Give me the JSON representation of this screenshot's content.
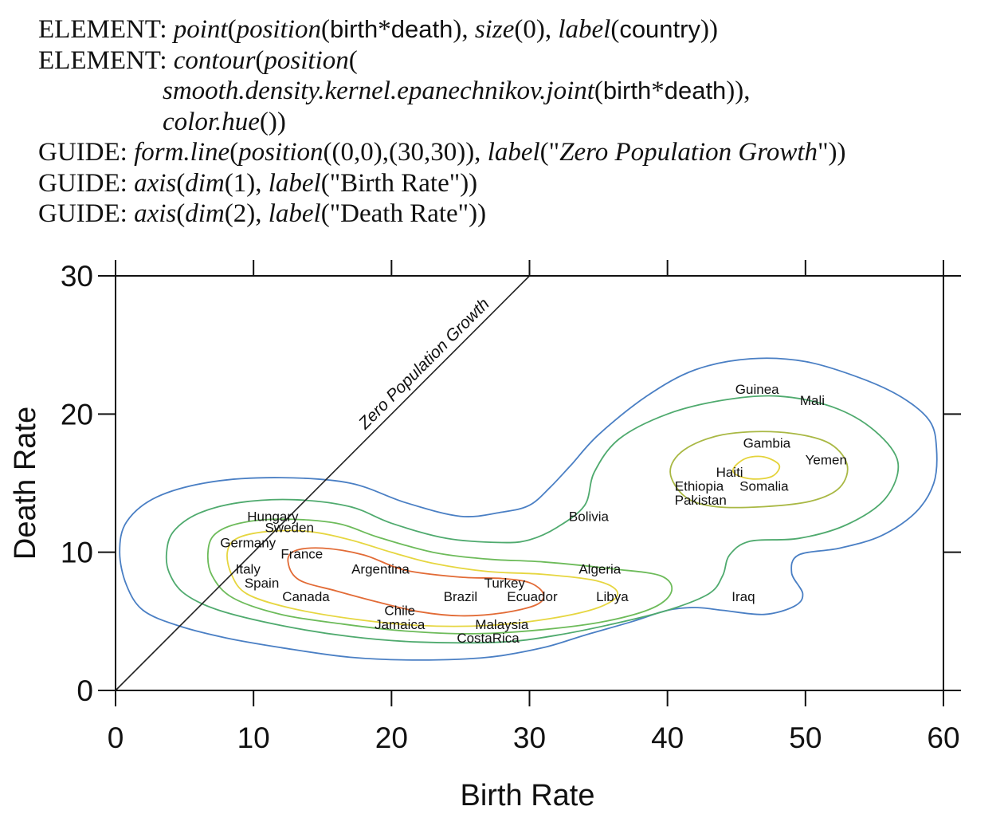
{
  "spec": {
    "lines": [
      {
        "indent": false,
        "segments": [
          {
            "t": "ELEMENT: ",
            "s": "n"
          },
          {
            "t": "point",
            "s": "i"
          },
          {
            "t": "(",
            "s": "n"
          },
          {
            "t": "position",
            "s": "i"
          },
          {
            "t": "(",
            "s": "n"
          },
          {
            "t": "birth",
            "s": "d"
          },
          {
            "t": "*",
            "s": "n"
          },
          {
            "t": "death",
            "s": "d"
          },
          {
            "t": "), ",
            "s": "n"
          },
          {
            "t": "size",
            "s": "i"
          },
          {
            "t": "(0), ",
            "s": "n"
          },
          {
            "t": "label",
            "s": "i"
          },
          {
            "t": "(",
            "s": "n"
          },
          {
            "t": "country",
            "s": "d"
          },
          {
            "t": "))",
            "s": "n"
          }
        ]
      },
      {
        "indent": false,
        "segments": [
          {
            "t": "ELEMENT: ",
            "s": "n"
          },
          {
            "t": "contour",
            "s": "i"
          },
          {
            "t": "(",
            "s": "n"
          },
          {
            "t": "position",
            "s": "i"
          },
          {
            "t": "(",
            "s": "n"
          }
        ]
      },
      {
        "indent": true,
        "segments": [
          {
            "t": "smooth.density.kernel.epanechnikov.joint",
            "s": "i"
          },
          {
            "t": "(",
            "s": "n"
          },
          {
            "t": "birth",
            "s": "d"
          },
          {
            "t": "*",
            "s": "n"
          },
          {
            "t": "death",
            "s": "d"
          },
          {
            "t": ")),",
            "s": "n"
          }
        ]
      },
      {
        "indent": true,
        "segments": [
          {
            "t": "color.hue",
            "s": "i"
          },
          {
            "t": "())",
            "s": "n"
          }
        ]
      },
      {
        "indent": false,
        "segments": [
          {
            "t": "GUIDE: ",
            "s": "n"
          },
          {
            "t": "form.line",
            "s": "i"
          },
          {
            "t": "(",
            "s": "n"
          },
          {
            "t": "position",
            "s": "i"
          },
          {
            "t": "((0,0),(30,30)), ",
            "s": "n"
          },
          {
            "t": "label",
            "s": "i"
          },
          {
            "t": "(\"",
            "s": "n"
          },
          {
            "t": "Zero Population Growth",
            "s": "i"
          },
          {
            "t": "\"))",
            "s": "n"
          }
        ]
      },
      {
        "indent": false,
        "segments": [
          {
            "t": "GUIDE: ",
            "s": "n"
          },
          {
            "t": "axis",
            "s": "i"
          },
          {
            "t": "(",
            "s": "n"
          },
          {
            "t": "dim",
            "s": "i"
          },
          {
            "t": "(1), ",
            "s": "n"
          },
          {
            "t": "label",
            "s": "i"
          },
          {
            "t": "(\"Birth Rate\"))",
            "s": "n"
          }
        ]
      },
      {
        "indent": false,
        "segments": [
          {
            "t": "GUIDE: ",
            "s": "n"
          },
          {
            "t": "axis",
            "s": "i"
          },
          {
            "t": "(",
            "s": "n"
          },
          {
            "t": "dim",
            "s": "i"
          },
          {
            "t": "(2), ",
            "s": "n"
          },
          {
            "t": "label",
            "s": "i"
          },
          {
            "t": "(\"Death Rate\"))",
            "s": "n"
          }
        ]
      }
    ]
  },
  "chart_data": {
    "type": "scatter",
    "xlabel": "Birth Rate",
    "ylabel": "Death Rate",
    "xlim": [
      0,
      60
    ],
    "ylim": [
      0,
      30
    ],
    "xticks": [
      0,
      10,
      20,
      30,
      40,
      50,
      60
    ],
    "yticks": [
      0,
      10,
      20,
      30
    ],
    "grid": false,
    "reference_line": {
      "from": [
        0,
        0
      ],
      "to": [
        30,
        30
      ],
      "label": "Zero Population Growth",
      "color": "#222222"
    },
    "points": [
      {
        "label": "Guinea",
        "x": 46.5,
        "y": 21.8
      },
      {
        "label": "Mali",
        "x": 50.5,
        "y": 21.0
      },
      {
        "label": "Gambia",
        "x": 47.2,
        "y": 17.9
      },
      {
        "label": "Yemen",
        "x": 51.5,
        "y": 16.7
      },
      {
        "label": "Haiti",
        "x": 44.5,
        "y": 15.8
      },
      {
        "label": "Ethiopia",
        "x": 42.3,
        "y": 14.8
      },
      {
        "label": "Somalia",
        "x": 47.0,
        "y": 14.8
      },
      {
        "label": "Pakistan",
        "x": 42.4,
        "y": 13.8
      },
      {
        "label": "Bolivia",
        "x": 34.3,
        "y": 12.6
      },
      {
        "label": "Hungary",
        "x": 11.4,
        "y": 12.6
      },
      {
        "label": "Sweden",
        "x": 12.6,
        "y": 11.8
      },
      {
        "label": "Germany",
        "x": 9.6,
        "y": 10.7
      },
      {
        "label": "France",
        "x": 13.5,
        "y": 9.9
      },
      {
        "label": "Argentina",
        "x": 19.2,
        "y": 8.8
      },
      {
        "label": "Algeria",
        "x": 35.1,
        "y": 8.8
      },
      {
        "label": "Italy",
        "x": 9.6,
        "y": 8.8
      },
      {
        "label": "Spain",
        "x": 10.6,
        "y": 7.8
      },
      {
        "label": "Turkey",
        "x": 28.2,
        "y": 7.8
      },
      {
        "label": "Canada",
        "x": 13.8,
        "y": 6.8
      },
      {
        "label": "Brazil",
        "x": 25.0,
        "y": 6.8
      },
      {
        "label": "Ecuador",
        "x": 30.2,
        "y": 6.8
      },
      {
        "label": "Libya",
        "x": 36.0,
        "y": 6.8
      },
      {
        "label": "Iraq",
        "x": 45.5,
        "y": 6.8
      },
      {
        "label": "Chile",
        "x": 20.6,
        "y": 5.8
      },
      {
        "label": "Jamaica",
        "x": 20.6,
        "y": 4.8
      },
      {
        "label": "Malaysia",
        "x": 28.0,
        "y": 4.8
      },
      {
        "label": "CostaRica",
        "x": 27.0,
        "y": 3.8
      }
    ],
    "contours": [
      {
        "color": "#4a7fc4",
        "points": [
          [
            0.3,
            10
          ],
          [
            0.8,
            12.2
          ],
          [
            3,
            14
          ],
          [
            7,
            15.1
          ],
          [
            12,
            15.4
          ],
          [
            17,
            15.0
          ],
          [
            21,
            13.6
          ],
          [
            25,
            12.6
          ],
          [
            28,
            12.9
          ],
          [
            30,
            13.4
          ],
          [
            31.5,
            14.7
          ],
          [
            33,
            16.3
          ],
          [
            35,
            18.5
          ],
          [
            38.5,
            21.3
          ],
          [
            42,
            23.2
          ],
          [
            46,
            24.0
          ],
          [
            50,
            23.8
          ],
          [
            54,
            22.6
          ],
          [
            57,
            21.2
          ],
          [
            59,
            19.5
          ],
          [
            59.5,
            17.5
          ],
          [
            59.3,
            15.0
          ],
          [
            58,
            12.9
          ],
          [
            55.5,
            11.2
          ],
          [
            52.5,
            10.3
          ],
          [
            49.5,
            9.8
          ],
          [
            49,
            8.5
          ],
          [
            49.8,
            7.0
          ],
          [
            49.2,
            6.1
          ],
          [
            47,
            5.5
          ],
          [
            44,
            5.8
          ],
          [
            42,
            6.0
          ],
          [
            40,
            5.8
          ],
          [
            37.5,
            5.0
          ],
          [
            34,
            4.0
          ],
          [
            31,
            3.1
          ],
          [
            27,
            2.4
          ],
          [
            22,
            2.2
          ],
          [
            17,
            2.4
          ],
          [
            12,
            3.1
          ],
          [
            8,
            3.8
          ],
          [
            4.5,
            4.7
          ],
          [
            2,
            5.8
          ],
          [
            0.8,
            7.6
          ],
          [
            0.3,
            10
          ]
        ]
      },
      {
        "color": "#4faa6e",
        "points": [
          [
            3.7,
            10
          ],
          [
            4.2,
            11.5
          ],
          [
            6,
            12.8
          ],
          [
            9,
            13.6
          ],
          [
            13,
            13.8
          ],
          [
            17,
            13.3
          ],
          [
            20,
            12.1
          ],
          [
            24,
            11.0
          ],
          [
            28,
            10.7
          ],
          [
            30,
            10.9
          ],
          [
            32,
            11.8
          ],
          [
            34,
            13.4
          ],
          [
            34.7,
            15.8
          ],
          [
            36.5,
            18.2
          ],
          [
            40,
            20.0
          ],
          [
            44,
            21.0
          ],
          [
            48,
            21.3
          ],
          [
            52,
            20.5
          ],
          [
            55,
            18.8
          ],
          [
            56.7,
            16.5
          ],
          [
            55.8,
            13.9
          ],
          [
            53,
            12.0
          ],
          [
            49.5,
            11.0
          ],
          [
            46,
            10.8
          ],
          [
            44.5,
            9.8
          ],
          [
            44,
            8.3
          ],
          [
            43,
            7.0
          ],
          [
            40,
            5.8
          ],
          [
            36,
            4.8
          ],
          [
            32,
            4.0
          ],
          [
            28,
            3.5
          ],
          [
            22,
            3.5
          ],
          [
            17,
            3.9
          ],
          [
            12,
            4.7
          ],
          [
            7.5,
            5.8
          ],
          [
            5,
            7.0
          ],
          [
            3.9,
            8.5
          ],
          [
            3.7,
            10
          ]
        ]
      },
      {
        "color": "#6dbb5a",
        "points": [
          [
            6.7,
            10
          ],
          [
            7.2,
            11.3
          ],
          [
            9,
            12.1
          ],
          [
            12,
            12.4
          ],
          [
            16,
            12.1
          ],
          [
            19,
            11.1
          ],
          [
            23,
            10.0
          ],
          [
            27,
            9.5
          ],
          [
            31,
            9.3
          ],
          [
            36,
            8.8
          ],
          [
            39.5,
            8.3
          ],
          [
            40.3,
            7.2
          ],
          [
            39,
            6.0
          ],
          [
            35.5,
            5.0
          ],
          [
            31,
            4.4
          ],
          [
            26,
            4.1
          ],
          [
            21,
            4.3
          ],
          [
            16.5,
            4.8
          ],
          [
            12,
            5.5
          ],
          [
            8.5,
            6.7
          ],
          [
            7,
            8.3
          ],
          [
            6.7,
            10
          ]
        ]
      },
      {
        "color": "#a9b844",
        "points": [
          [
            40.2,
            15.8
          ],
          [
            41.2,
            17.4
          ],
          [
            44,
            18.5
          ],
          [
            48,
            18.7
          ],
          [
            51.5,
            18.0
          ],
          [
            53,
            16.4
          ],
          [
            52.5,
            14.7
          ],
          [
            50.4,
            13.7
          ],
          [
            47,
            13.3
          ],
          [
            43.5,
            13.3
          ],
          [
            41.3,
            14.0
          ],
          [
            40.2,
            15.8
          ]
        ]
      },
      {
        "color": "#e6d640",
        "points": [
          [
            8.1,
            10
          ],
          [
            8.8,
            11.0
          ],
          [
            11,
            11.5
          ],
          [
            14,
            11.5
          ],
          [
            17,
            10.9
          ],
          [
            20,
            10.0
          ],
          [
            23,
            9.2
          ],
          [
            27,
            8.6
          ],
          [
            31,
            8.4
          ],
          [
            35,
            7.9
          ],
          [
            36.4,
            7.0
          ],
          [
            35,
            6.0
          ],
          [
            31.5,
            5.2
          ],
          [
            27,
            4.7
          ],
          [
            22,
            4.7
          ],
          [
            17,
            5.2
          ],
          [
            12.5,
            6.0
          ],
          [
            9.5,
            7.0
          ],
          [
            8.4,
            8.4
          ],
          [
            8.1,
            10
          ]
        ]
      },
      {
        "color": "#e4d33a",
        "points": [
          [
            44.8,
            16.1
          ],
          [
            45.7,
            16.8
          ],
          [
            47,
            16.9
          ],
          [
            48.1,
            16.3
          ],
          [
            47.6,
            15.5
          ],
          [
            46.2,
            15.3
          ],
          [
            45.0,
            15.6
          ],
          [
            44.8,
            16.1
          ]
        ]
      },
      {
        "color": "#e26b36",
        "points": [
          [
            12.5,
            9.3
          ],
          [
            13,
            10.1
          ],
          [
            15,
            10.3
          ],
          [
            18,
            9.8
          ],
          [
            21,
            8.7
          ],
          [
            25,
            8.2
          ],
          [
            28,
            8.1
          ],
          [
            30,
            7.8
          ],
          [
            31,
            7.0
          ],
          [
            30.5,
            6.2
          ],
          [
            28,
            5.6
          ],
          [
            25,
            5.4
          ],
          [
            22,
            5.7
          ],
          [
            19,
            6.4
          ],
          [
            16,
            7.2
          ],
          [
            13.3,
            8.0
          ],
          [
            12.5,
            9.3
          ]
        ]
      }
    ]
  }
}
